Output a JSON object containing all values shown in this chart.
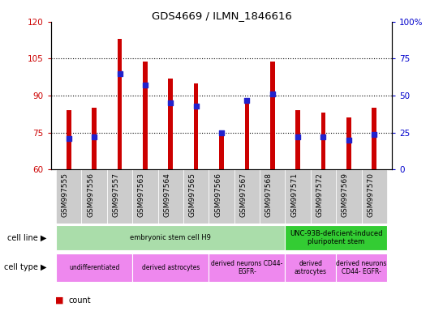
{
  "title": "GDS4669 / ILMN_1846616",
  "samples": [
    "GSM997555",
    "GSM997556",
    "GSM997557",
    "GSM997563",
    "GSM997564",
    "GSM997565",
    "GSM997566",
    "GSM997567",
    "GSM997568",
    "GSM997571",
    "GSM997572",
    "GSM997569",
    "GSM997570"
  ],
  "count_values": [
    84,
    85,
    113,
    104,
    97,
    95,
    76,
    87,
    104,
    84,
    83,
    81,
    85
  ],
  "count_bottom": [
    60,
    60,
    60,
    60,
    60,
    60,
    60,
    60,
    60,
    60,
    60,
    60,
    60
  ],
  "percentile_values": [
    21,
    22,
    65,
    57,
    45,
    43,
    25,
    47,
    51,
    22,
    22,
    20,
    24
  ],
  "ylim_left": [
    60,
    120
  ],
  "ylim_right": [
    0,
    100
  ],
  "yticks_left": [
    60,
    75,
    90,
    105,
    120
  ],
  "yticks_right": [
    0,
    25,
    50,
    75,
    100
  ],
  "ytick_labels_right": [
    "0",
    "25",
    "50",
    "75",
    "100%"
  ],
  "bar_color": "#cc0000",
  "dot_color": "#2222cc",
  "bar_width": 0.18,
  "cell_line_groups": [
    {
      "label": "embryonic stem cell H9",
      "start": 0,
      "end": 9,
      "color": "#aaddaa"
    },
    {
      "label": "UNC-93B-deficient-induced\npluripotent stem",
      "start": 9,
      "end": 13,
      "color": "#33cc33"
    }
  ],
  "cell_type_groups": [
    {
      "label": "undifferentiated",
      "start": 0,
      "end": 3,
      "color": "#ee88ee"
    },
    {
      "label": "derived astrocytes",
      "start": 3,
      "end": 6,
      "color": "#ee88ee"
    },
    {
      "label": "derived neurons CD44-\nEGFR-",
      "start": 6,
      "end": 9,
      "color": "#ee88ee"
    },
    {
      "label": "derived\nastrocytes",
      "start": 9,
      "end": 11,
      "color": "#ee88ee"
    },
    {
      "label": "derived neurons\nCD44- EGFR-",
      "start": 11,
      "end": 13,
      "color": "#ee88ee"
    }
  ],
  "bg_color": "#ffffff",
  "tick_label_color_left": "#cc0000",
  "tick_label_color_right": "#0000cc",
  "sample_bg_color": "#cccccc"
}
